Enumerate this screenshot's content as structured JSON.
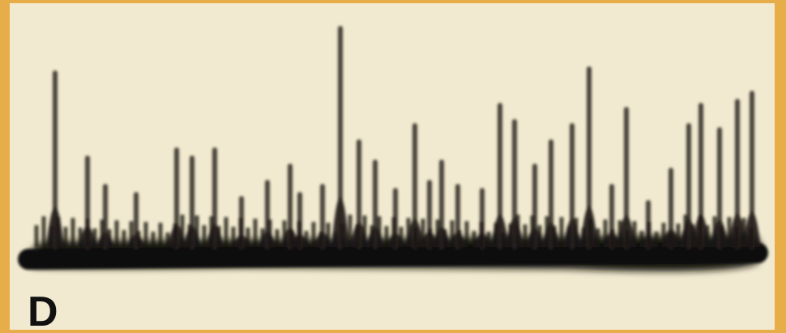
{
  "panel_label": "D"
}
